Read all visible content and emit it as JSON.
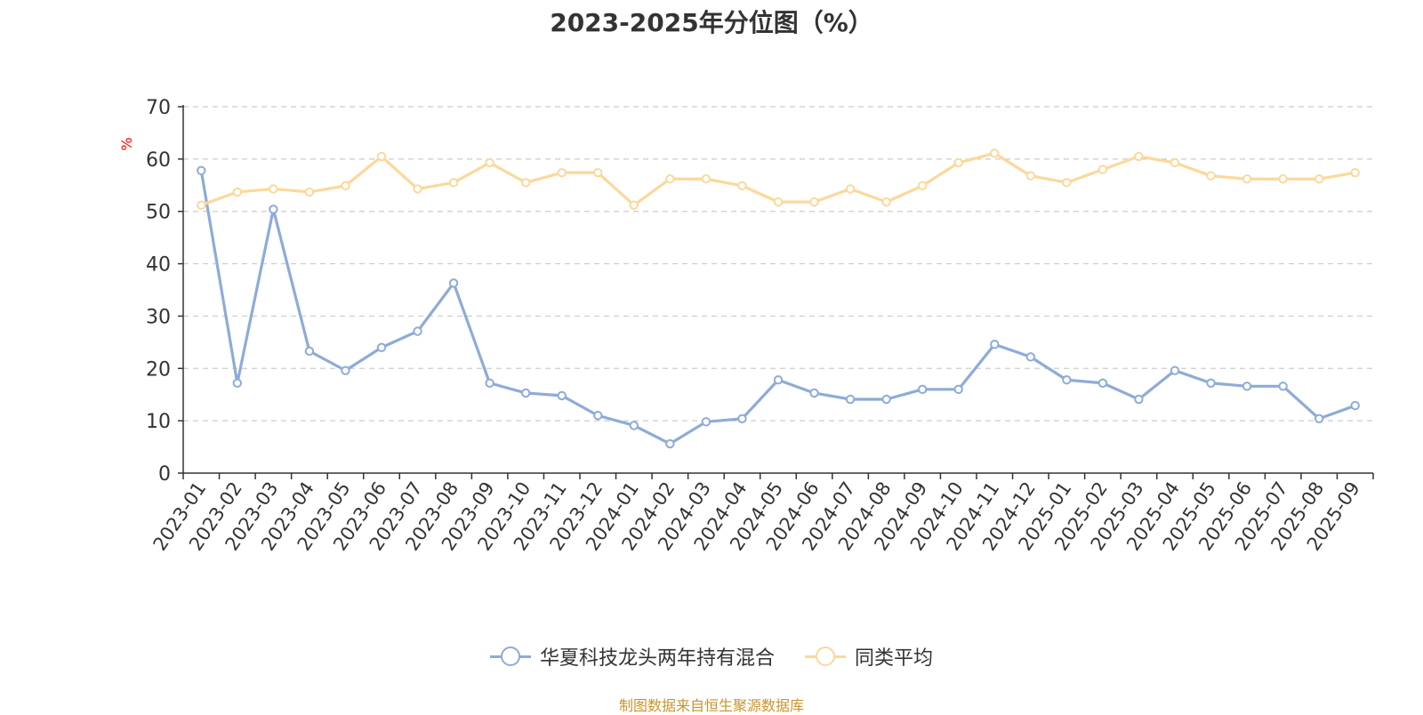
{
  "chart_data": {
    "type": "line",
    "title": "2023-2025年分位图（%）",
    "ylabel": "%",
    "xlabel": "",
    "ylim": [
      0,
      70
    ],
    "yticks": [
      0,
      10,
      20,
      30,
      40,
      50,
      60,
      70
    ],
    "grid": true,
    "legend_position": "bottom-center",
    "categories": [
      "2023-01",
      "2023-02",
      "2023-03",
      "2023-04",
      "2023-05",
      "2023-06",
      "2023-07",
      "2023-08",
      "2023-09",
      "2023-10",
      "2023-11",
      "2023-12",
      "2024-01",
      "2024-02",
      "2024-03",
      "2024-04",
      "2024-05",
      "2024-06",
      "2024-07",
      "2024-08",
      "2024-09",
      "2024-10",
      "2024-11",
      "2024-12",
      "2025-01",
      "2025-02",
      "2025-03",
      "2025-04",
      "2025-05",
      "2025-06",
      "2025-07",
      "2025-08",
      "2025-09"
    ],
    "series": [
      {
        "name": "华夏科技龙头两年持有混合",
        "color": "#8eabd8",
        "values": [
          57.8,
          17.2,
          50.4,
          23.3,
          19.6,
          24.0,
          27.1,
          36.3,
          17.2,
          15.3,
          14.8,
          11.0,
          9.1,
          5.6,
          9.8,
          10.4,
          17.8,
          15.3,
          14.1,
          14.1,
          16.0,
          16.0,
          24.6,
          22.2,
          17.8,
          17.2,
          14.1,
          19.6,
          17.2,
          16.6,
          16.6,
          10.4,
          12.9
        ]
      },
      {
        "name": "同类平均",
        "color": "#fcd89a",
        "values": [
          51.2,
          53.7,
          54.3,
          53.7,
          54.9,
          60.5,
          54.3,
          55.5,
          59.3,
          55.5,
          57.4,
          57.4,
          51.2,
          56.2,
          56.2,
          54.9,
          51.8,
          51.8,
          54.3,
          51.8,
          54.9,
          59.3,
          61.1,
          56.8,
          55.5,
          58.0,
          60.5,
          59.3,
          56.8,
          56.2,
          56.2,
          56.2,
          57.4
        ]
      }
    ]
  },
  "source_note": "制图数据来自恒生聚源数据库"
}
